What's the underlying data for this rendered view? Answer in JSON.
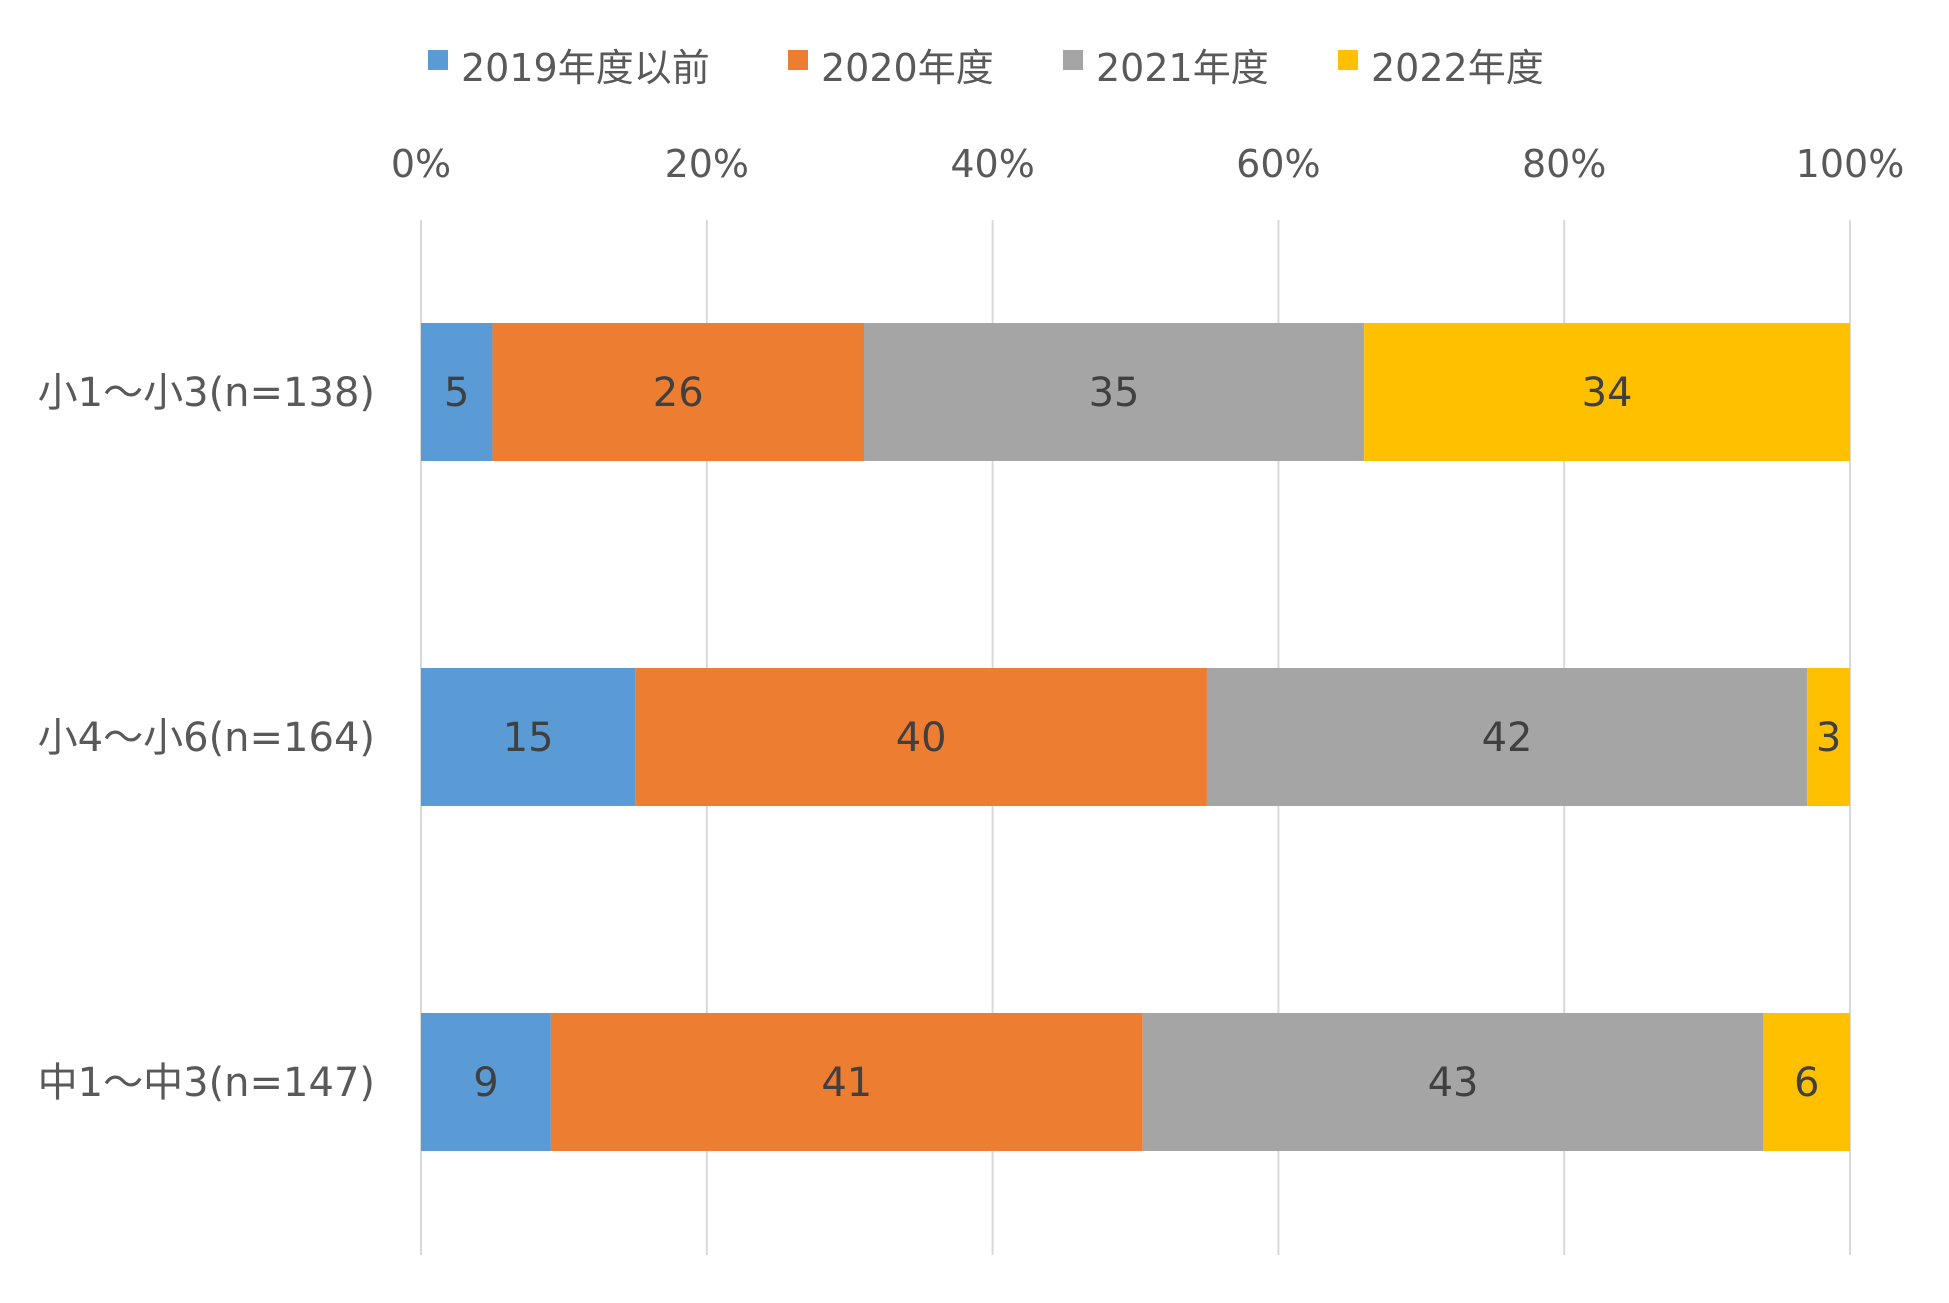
{
  "chart_data": {
    "type": "bar",
    "orientation": "horizontal",
    "stacked": "percent",
    "title": "",
    "xlabel": "",
    "ylabel": "",
    "xlim": [
      0,
      100
    ],
    "x_ticks": [
      "0%",
      "20%",
      "40%",
      "60%",
      "80%",
      "100%"
    ],
    "grid": true,
    "legend_position": "top",
    "categories": [
      "小1～小3(n=138)",
      "小4～小6(n=164)",
      "中1～中3(n=147)"
    ],
    "series": [
      {
        "name": "2019年度以前",
        "color": "#5b9bd5",
        "values": [
          5,
          15,
          9
        ]
      },
      {
        "name": "2020年度",
        "color": "#ed7d31",
        "values": [
          26,
          40,
          41
        ]
      },
      {
        "name": "2021年度",
        "color": "#a5a5a5",
        "values": [
          35,
          42,
          43
        ]
      },
      {
        "name": "2022年度",
        "color": "#ffc000",
        "values": [
          34,
          3,
          6
        ]
      }
    ],
    "data_label_color": "#404040",
    "axis_text_color": "#595959",
    "gridline_color": "#d9d9d9"
  }
}
